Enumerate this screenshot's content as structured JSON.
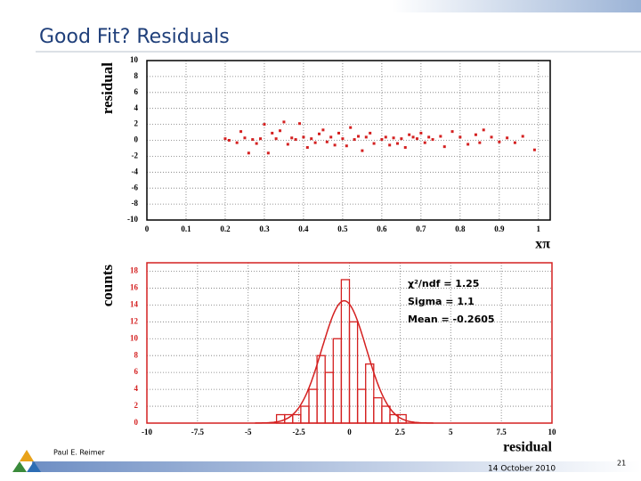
{
  "header": {
    "title": "Good Fit?  Residuals"
  },
  "footer": {
    "author": "Paul E. Reimer",
    "date": "14 October 2010",
    "page": "21"
  },
  "chart_data": [
    {
      "type": "scatter",
      "y_label": "residual",
      "x_label": "xπ",
      "color": "#d42020",
      "grid": true,
      "xlim": [
        0,
        1.03
      ],
      "xticks": [
        0,
        0.1,
        0.2,
        0.3,
        0.4,
        0.5,
        0.6,
        0.7,
        0.8,
        0.9,
        1
      ],
      "ylim": [
        -10,
        10
      ],
      "yticks": [
        -10,
        -8,
        -6,
        -4,
        -2,
        0,
        2,
        4,
        6,
        8,
        10
      ],
      "x": [
        0.2,
        0.21,
        0.23,
        0.24,
        0.25,
        0.26,
        0.27,
        0.28,
        0.29,
        0.3,
        0.31,
        0.32,
        0.33,
        0.34,
        0.35,
        0.36,
        0.37,
        0.38,
        0.39,
        0.4,
        0.41,
        0.42,
        0.43,
        0.44,
        0.45,
        0.46,
        0.47,
        0.48,
        0.49,
        0.5,
        0.51,
        0.52,
        0.53,
        0.54,
        0.55,
        0.56,
        0.57,
        0.58,
        0.6,
        0.61,
        0.62,
        0.63,
        0.64,
        0.65,
        0.66,
        0.67,
        0.68,
        0.69,
        0.7,
        0.71,
        0.72,
        0.73,
        0.75,
        0.76,
        0.78,
        0.8,
        0.82,
        0.84,
        0.85,
        0.86,
        0.88,
        0.9,
        0.92,
        0.94,
        0.96,
        0.99
      ],
      "y": [
        0.2,
        0,
        -0.3,
        1.1,
        0.3,
        -1.6,
        0.1,
        -0.4,
        0.2,
        2,
        -1.6,
        0.9,
        0.2,
        1.2,
        2.3,
        -0.5,
        0.3,
        0.1,
        2.1,
        0.4,
        -0.9,
        0.2,
        -0.3,
        0.8,
        1.3,
        -0.2,
        0.4,
        -0.6,
        0.9,
        0.2,
        -0.7,
        1.6,
        0.1,
        0.5,
        -1.3,
        0.4,
        0.9,
        -0.4,
        0.1,
        0.4,
        -0.6,
        0.3,
        -0.4,
        0.2,
        -0.9,
        0.7,
        0.4,
        0.2,
        0.9,
        -0.3,
        0.4,
        0.1,
        0.5,
        -0.8,
        1.1,
        0.4,
        -0.5,
        0.7,
        -0.3,
        1.3,
        0.4,
        -0.2,
        0.3,
        -0.3,
        0.5,
        -1.2
      ]
    },
    {
      "type": "histogram",
      "y_label": "counts",
      "x_label": "residual",
      "color": "#d42020",
      "grid": true,
      "xlim": [
        -10,
        10
      ],
      "xticks": [
        -10,
        -7.5,
        -5,
        -2.5,
        0,
        2.5,
        5,
        7.5,
        10
      ],
      "ylim": [
        0,
        19
      ],
      "yticks": [
        0,
        2,
        4,
        6,
        8,
        10,
        12,
        14,
        16,
        18
      ],
      "bins": [
        -3.6,
        -3.2,
        -2.8,
        -2.4,
        -2.0,
        -1.6,
        -1.2,
        -0.8,
        -0.4,
        0,
        0.4,
        0.8,
        1.2,
        1.6,
        2.0,
        2.4,
        2.8
      ],
      "counts": [
        1,
        1,
        1,
        2,
        4,
        8,
        6,
        10,
        17,
        12,
        4,
        7,
        3,
        2,
        1,
        1
      ],
      "fit": {
        "mean": -0.2605,
        "sigma": 1.1,
        "amplitude": 14.5
      },
      "stats": [
        "χ²/ndf = 1.25",
        "Sigma = 1.1",
        "Mean = -0.2605"
      ]
    }
  ]
}
